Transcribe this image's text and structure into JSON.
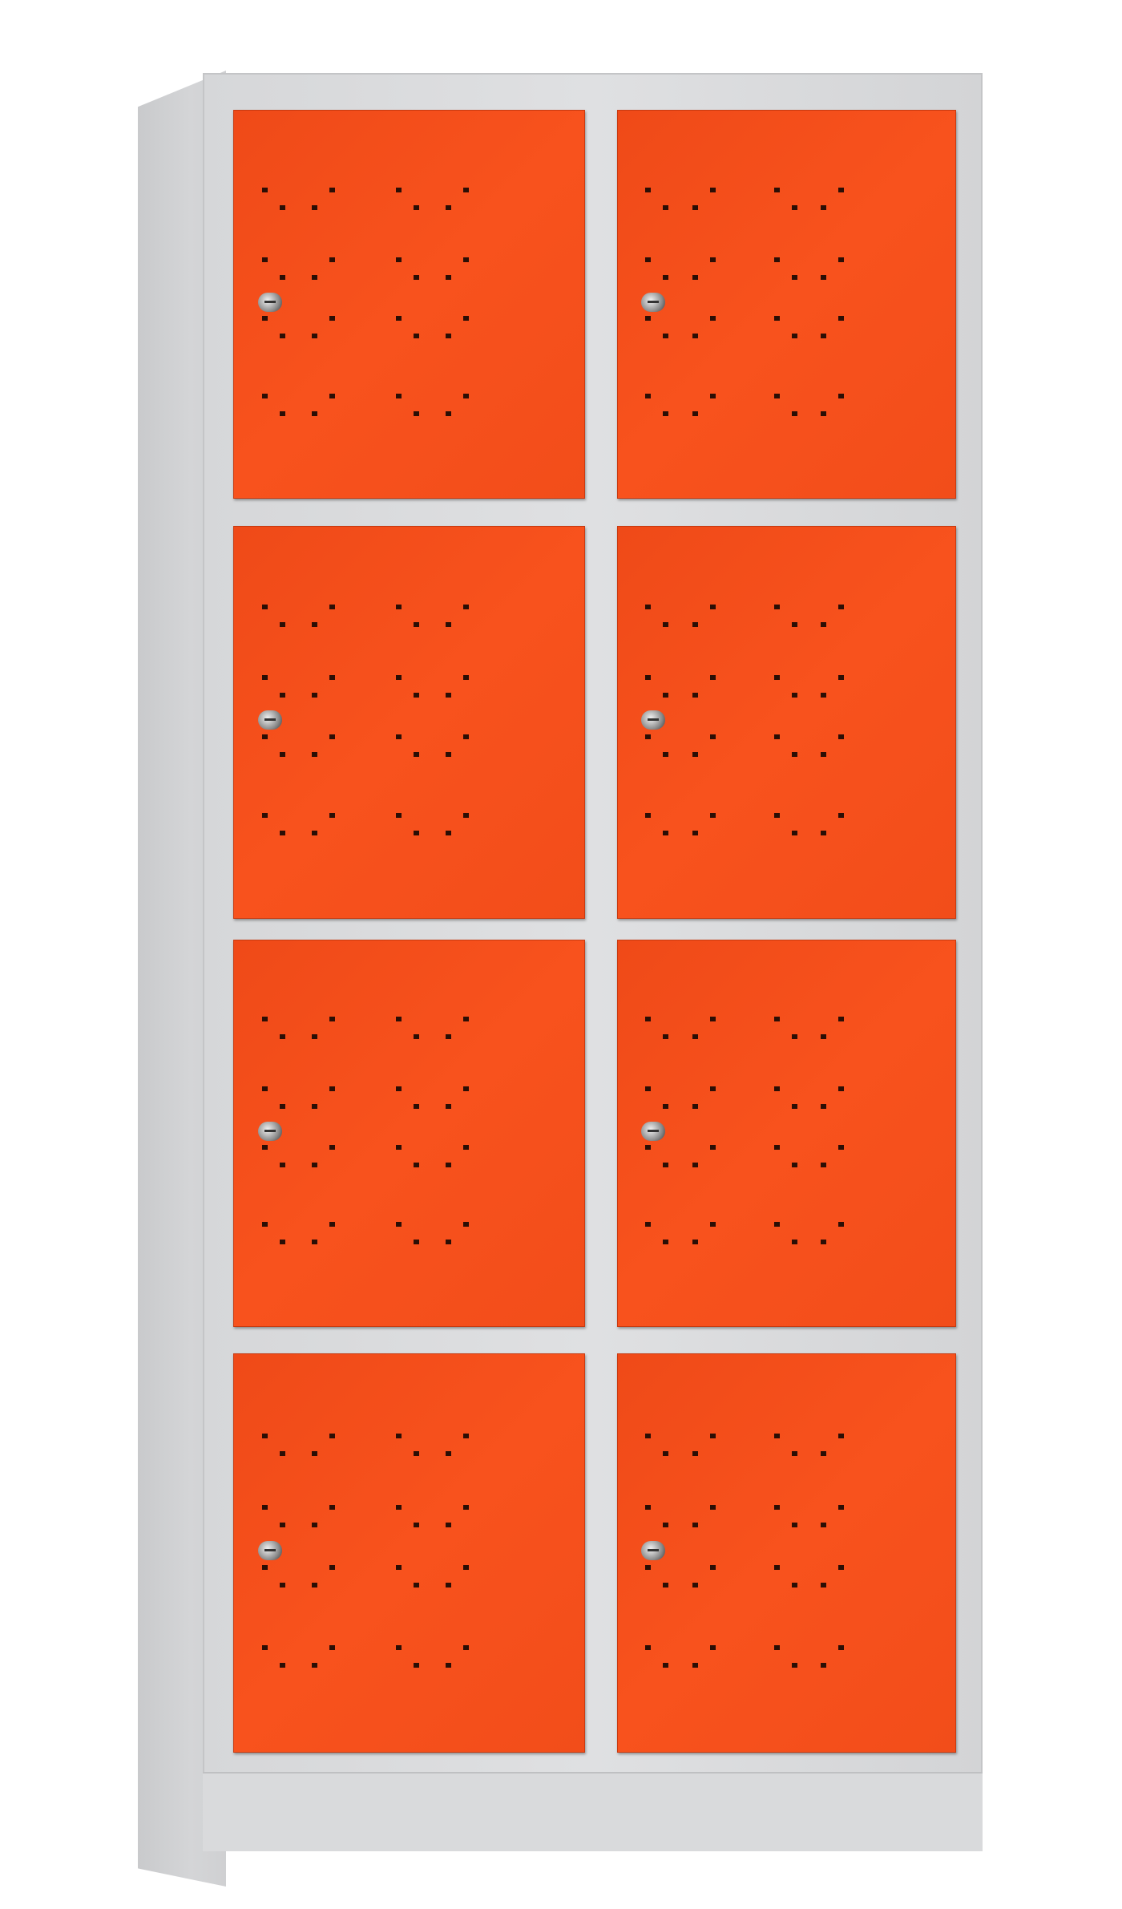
{
  "product": {
    "type": "locker-cabinet",
    "columns": 2,
    "rows": 4,
    "colors": {
      "door": "#f24d1a",
      "body": "#d9dadc",
      "perforation": "#2b0e05"
    }
  },
  "doors": [
    {
      "column": 1,
      "row": 1
    },
    {
      "column": 2,
      "row": 1
    },
    {
      "column": 1,
      "row": 2
    },
    {
      "column": 2,
      "row": 2
    },
    {
      "column": 1,
      "row": 3
    },
    {
      "column": 2,
      "row": 3
    },
    {
      "column": 1,
      "row": 4
    },
    {
      "column": 2,
      "row": 4
    }
  ]
}
